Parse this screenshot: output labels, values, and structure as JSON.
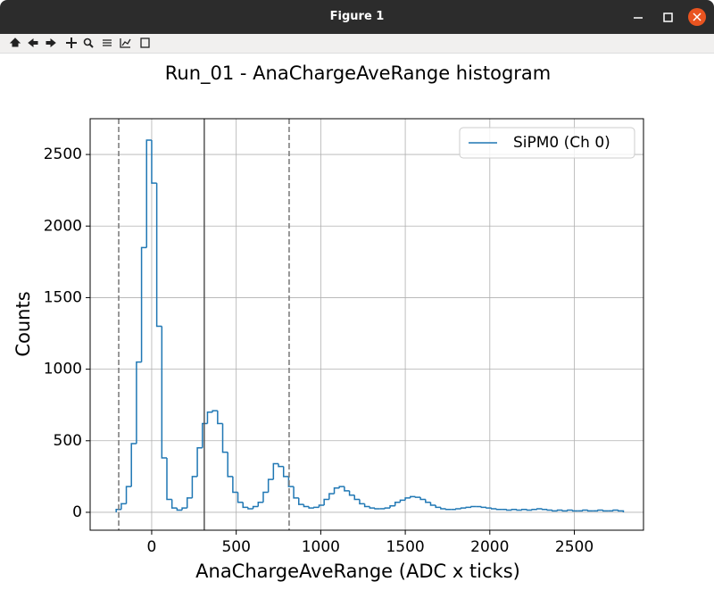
{
  "window": {
    "title": "Figure 1"
  },
  "chart_data": {
    "type": "histogram",
    "title": "Run_01  - AnaChargeAveRange histogram",
    "x_label": "AnaChargeAveRange (ADC x ticks)",
    "y_label": "Counts",
    "bins": [
      -210,
      -180,
      -150,
      -120,
      -90,
      -60,
      -30,
      0,
      30,
      60,
      90,
      120,
      150,
      180,
      210,
      240,
      270,
      300,
      330,
      360,
      390,
      420,
      450,
      480,
      510,
      540,
      570,
      600,
      630,
      660,
      690,
      720,
      750,
      780,
      810,
      840,
      870,
      900,
      930,
      960,
      990,
      1020,
      1050,
      1080,
      1110,
      1140,
      1170,
      1200,
      1230,
      1260,
      1290,
      1320,
      1350,
      1380,
      1410,
      1440,
      1470,
      1500,
      1530,
      1560,
      1590,
      1620,
      1650,
      1680,
      1710,
      1740,
      1770,
      1800,
      1830,
      1860,
      1890,
      1920,
      1950,
      1980,
      2010,
      2040,
      2070,
      2100,
      2130,
      2160,
      2190,
      2220,
      2250,
      2280,
      2310,
      2340,
      2370,
      2400,
      2430,
      2460,
      2490,
      2520,
      2550,
      2580,
      2610,
      2640,
      2670,
      2700,
      2730,
      2760,
      2790
    ],
    "series": [
      {
        "name": "SiPM0 (Ch 0)",
        "color": "#1f77b4",
        "values": [
          20,
          60,
          180,
          480,
          1050,
          1850,
          2600,
          2300,
          1300,
          380,
          90,
          30,
          15,
          30,
          100,
          250,
          450,
          620,
          700,
          710,
          620,
          420,
          250,
          140,
          70,
          35,
          25,
          40,
          70,
          140,
          230,
          340,
          320,
          250,
          180,
          100,
          55,
          40,
          30,
          35,
          50,
          90,
          130,
          170,
          180,
          150,
          120,
          90,
          60,
          40,
          30,
          25,
          25,
          30,
          45,
          70,
          85,
          100,
          110,
          105,
          90,
          70,
          50,
          35,
          25,
          20,
          20,
          25,
          30,
          35,
          40,
          40,
          35,
          30,
          25,
          20,
          20,
          15,
          20,
          15,
          20,
          15,
          20,
          25,
          20,
          15,
          10,
          15,
          10,
          15,
          10,
          10,
          15,
          10,
          10,
          15,
          10,
          10,
          15,
          10
        ]
      }
    ],
    "vlines": [
      {
        "x": -195,
        "style": "dashed",
        "color": "#777777"
      },
      {
        "x": 311,
        "style": "solid",
        "color": "#555555"
      },
      {
        "x": 813,
        "style": "dashed",
        "color": "#777777"
      }
    ],
    "xlim": [
      -364,
      2909
    ],
    "ylim": [
      -125,
      2750
    ],
    "xticks": [
      0,
      500,
      1000,
      1500,
      2000,
      2500
    ],
    "yticks": [
      0,
      500,
      1000,
      1500,
      2000,
      2500
    ],
    "grid": true,
    "legend": "upper right"
  }
}
